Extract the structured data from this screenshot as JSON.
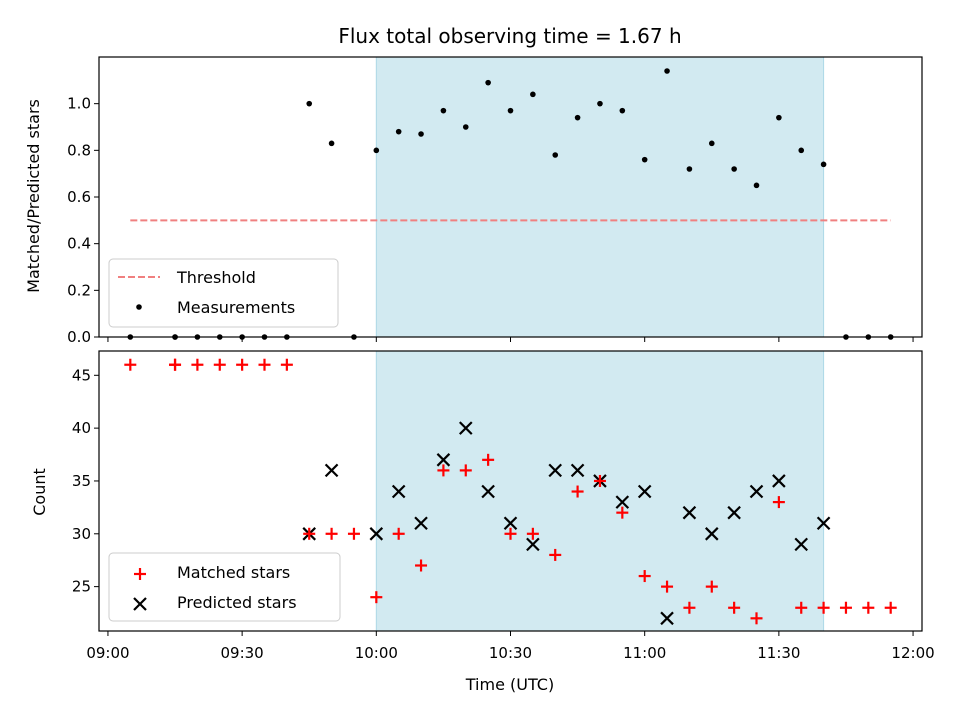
{
  "figure_title": "Flux total observing time = 1.67 h",
  "colors": {
    "shade": "#add8e6",
    "threshold": "#f08080",
    "matched": "#ff0000",
    "predicted": "#000000",
    "measurement": "#000000"
  },
  "chart_data": [
    {
      "type": "scatter",
      "ylabel": "Matched/Predicted stars",
      "xlim": [
        "08:58",
        "12:02"
      ],
      "ylim": [
        0,
        1.2
      ],
      "yticks": [
        "0.0",
        "0.2",
        "0.4",
        "0.6",
        "0.8",
        "1.0"
      ],
      "shaded_interval": [
        "10:00",
        "11:40"
      ],
      "legend": {
        "position": "lower-left",
        "entries": [
          "Threshold",
          "Measurements"
        ]
      },
      "threshold": {
        "name": "Threshold",
        "style": "dashed",
        "x": [
          "09:05",
          "11:55"
        ],
        "y": 0.5
      },
      "series": [
        {
          "name": "Measurements",
          "x": [
            "09:05",
            "09:15",
            "09:15",
            "09:20",
            "09:25",
            "09:30",
            "09:35",
            "09:40",
            "09:45",
            "09:50",
            "09:55",
            "10:00",
            "10:05",
            "10:10",
            "10:15",
            "10:20",
            "10:25",
            "10:30",
            "10:35",
            "10:40",
            "10:45",
            "10:50",
            "10:55",
            "11:00",
            "11:05",
            "11:10",
            "11:15",
            "11:20",
            "11:25",
            "11:30",
            "11:35",
            "11:40",
            "11:45",
            "11:50",
            "11:55"
          ],
          "y": [
            0.0,
            0.0,
            0.0,
            0.0,
            0.0,
            0.0,
            0.0,
            0.0,
            1.0,
            0.83,
            0.0,
            0.8,
            0.88,
            0.87,
            0.97,
            0.9,
            1.09,
            0.97,
            1.04,
            0.78,
            0.94,
            1.0,
            0.97,
            0.76,
            1.14,
            0.72,
            0.83,
            0.72,
            0.65,
            0.94,
            0.8,
            0.74,
            0.0,
            0.0,
            0.0
          ]
        }
      ]
    },
    {
      "type": "scatter",
      "xlabel": "Time (UTC)",
      "ylabel": "Count",
      "xlim": [
        "08:58",
        "12:02"
      ],
      "ylim": [
        20.8,
        47.3
      ],
      "yticks": [
        "25",
        "30",
        "35",
        "40",
        "45"
      ],
      "xticks": [
        "09:00",
        "09:30",
        "10:00",
        "10:30",
        "11:00",
        "11:30",
        "12:00"
      ],
      "shaded_interval": [
        "10:00",
        "11:40"
      ],
      "legend": {
        "position": "lower-left",
        "entries": [
          "Matched stars",
          "Predicted stars"
        ]
      },
      "series": [
        {
          "name": "Matched stars",
          "marker": "plus",
          "x": [
            "09:05",
            "09:15",
            "09:15",
            "09:20",
            "09:25",
            "09:30",
            "09:35",
            "09:40",
            "09:45",
            "09:50",
            "09:55",
            "10:00",
            "10:05",
            "10:10",
            "10:15",
            "10:20",
            "10:25",
            "10:30",
            "10:35",
            "10:40",
            "10:45",
            "10:50",
            "10:55",
            "11:00",
            "11:05",
            "11:10",
            "11:15",
            "11:20",
            "11:25",
            "11:30",
            "11:35",
            "11:40",
            "11:45",
            "11:50",
            "11:55"
          ],
          "y": [
            46,
            46,
            46,
            46,
            46,
            46,
            46,
            46,
            30,
            30,
            30,
            24,
            30,
            27,
            36,
            36,
            37,
            30,
            30,
            28,
            34,
            35,
            32,
            26,
            25,
            23,
            25,
            23,
            22,
            33,
            23,
            23,
            23,
            23,
            23
          ]
        },
        {
          "name": "Predicted stars",
          "marker": "x",
          "x": [
            "09:45",
            "09:50",
            "10:00",
            "10:05",
            "10:10",
            "10:15",
            "10:20",
            "10:25",
            "10:30",
            "10:35",
            "10:40",
            "10:45",
            "10:50",
            "10:55",
            "11:00",
            "11:05",
            "11:10",
            "11:15",
            "11:20",
            "11:25",
            "11:30",
            "11:35",
            "11:40"
          ],
          "y": [
            30,
            36,
            30,
            34,
            31,
            37,
            40,
            34,
            31,
            29,
            36,
            36,
            35,
            33,
            34,
            22,
            32,
            30,
            32,
            34,
            35,
            29,
            31
          ]
        }
      ]
    }
  ]
}
